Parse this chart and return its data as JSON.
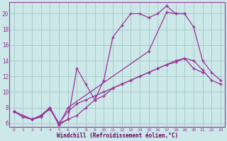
{
  "background_color": "#cce8e8",
  "grid_color": "#aacccc",
  "line_color": "#993399",
  "xlabel": "Windchill (Refroidissement éolien,°C)",
  "xlabel_color": "#660066",
  "ylabel_ticks": [
    6,
    8,
    10,
    12,
    14,
    16,
    18,
    20
  ],
  "xlim": [
    -0.5,
    23.5
  ],
  "ylim": [
    5.5,
    21.5
  ],
  "xticks": [
    0,
    1,
    2,
    3,
    4,
    5,
    6,
    7,
    8,
    9,
    10,
    11,
    12,
    13,
    14,
    15,
    16,
    17,
    18,
    19,
    20,
    21,
    22,
    23
  ],
  "series1_x": [
    0,
    1,
    2,
    3,
    4,
    5,
    6,
    7,
    8,
    9,
    10,
    11,
    12,
    13,
    14,
    15,
    16,
    17,
    18,
    19,
    20,
    21
  ],
  "series1_y": [
    7.5,
    6.8,
    6.5,
    6.8,
    8.0,
    6.0,
    6.5,
    7.0,
    8.0,
    9.0,
    9.5,
    10.5,
    11.0,
    11.5,
    12.0,
    12.5,
    13.0,
    13.5,
    13.8,
    14.3,
    13.0,
    12.5
  ],
  "series2_x": [
    0,
    2,
    3,
    4,
    5,
    6,
    7,
    8,
    9,
    10,
    11,
    12,
    13,
    14,
    15,
    16,
    17,
    18,
    19,
    20,
    21,
    22,
    23
  ],
  "series2_y": [
    7.5,
    6.5,
    7.0,
    7.8,
    6.0,
    7.5,
    8.5,
    9.0,
    9.5,
    10.0,
    10.5,
    11.0,
    11.5,
    12.0,
    12.5,
    13.0,
    13.5,
    14.0,
    14.3,
    14.0,
    12.8,
    11.5,
    11.0
  ],
  "series3_x": [
    0,
    2,
    3,
    4,
    5,
    6,
    7,
    8,
    9,
    10,
    11,
    12,
    13,
    14,
    15,
    16,
    17,
    18,
    19
  ],
  "series3_y": [
    7.5,
    6.5,
    7.0,
    8.0,
    5.8,
    6.5,
    13.0,
    11.0,
    9.0,
    11.5,
    17.0,
    18.5,
    20.0,
    20.0,
    19.5,
    20.0,
    21.0,
    20.0,
    20.0
  ],
  "series4_x": [
    0,
    2,
    3,
    4,
    5,
    6,
    15,
    17,
    18,
    19,
    20,
    21,
    22,
    23
  ],
  "series4_y": [
    7.5,
    6.5,
    7.0,
    8.0,
    5.8,
    8.0,
    15.2,
    20.2,
    20.0,
    20.0,
    18.3,
    14.0,
    12.5,
    11.5
  ]
}
